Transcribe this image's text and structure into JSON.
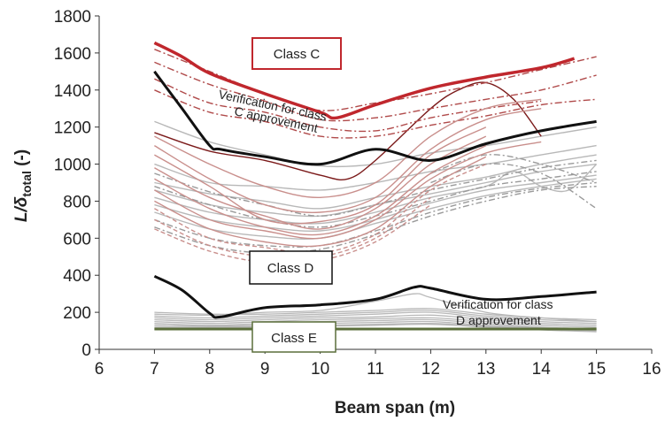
{
  "chart_data": {
    "type": "line",
    "xlabel": "Beam span (m)",
    "ylabel_main": "L/δ",
    "ylabel_sub": "total",
    "ylabel_unit": " (-)",
    "xlim": [
      6,
      16
    ],
    "ylim": [
      0,
      1800
    ],
    "xticks": [
      "6",
      "7",
      "8",
      "9",
      "10",
      "11",
      "12",
      "13",
      "14",
      "15",
      "16"
    ],
    "yticks": [
      "0",
      "200",
      "400",
      "600",
      "800",
      "1000",
      "1200",
      "1400",
      "1600",
      "1800"
    ],
    "grid": false,
    "colors": {
      "class_c": "#c0272d",
      "class_c_light": "#c98f8c",
      "class_c_mid": "#b04a4a",
      "class_c_dark": "#7b1a1a",
      "class_d": "#111111",
      "class_e": "#5a6e3a",
      "gray": "#b8b8b8",
      "gray_dark": "#9a9a9a"
    },
    "annotations": {
      "class_c": "Class C",
      "class_d": "Class D",
      "class_e": "Class E",
      "verif_c_line1": "Verification for class",
      "verif_c_line2": "C approvement",
      "verif_d_line1": "Verification for class",
      "verif_d_line2": "D approvement"
    },
    "limit_series": [
      {
        "role": "class_c",
        "x": [
          7,
          7.5,
          8,
          9,
          10,
          10.3,
          11,
          12,
          13,
          14,
          14.6
        ],
        "y": [
          1655,
          1580,
          1490,
          1380,
          1280,
          1250,
          1320,
          1410,
          1470,
          1520,
          1570
        ]
      },
      {
        "role": "class_d",
        "x": [
          7,
          7.5,
          8,
          8.2,
          9,
          10,
          11,
          12,
          13,
          14,
          15
        ],
        "y": [
          1500,
          1300,
          1100,
          1080,
          1040,
          1000,
          1080,
          1020,
          1110,
          1180,
          1230
        ]
      },
      {
        "role": "class_d",
        "x": [
          7,
          7.5,
          8,
          8.2,
          9,
          10,
          11,
          11.7,
          12,
          13,
          14,
          15
        ],
        "y": [
          395,
          320,
          195,
          175,
          225,
          240,
          270,
          335,
          330,
          270,
          285,
          310
        ]
      },
      {
        "role": "class_e",
        "x": [
          7,
          15
        ],
        "y": [
          110,
          110
        ]
      }
    ],
    "class_c_series": [
      {
        "style": "dark",
        "x": [
          7,
          8,
          9,
          10,
          10.5,
          11,
          12,
          12.5,
          13,
          13.5,
          14
        ],
        "y": [
          1170,
          1070,
          1020,
          940,
          920,
          1020,
          1300,
          1400,
          1440,
          1350,
          1150
        ]
      },
      {
        "style": "dash",
        "x": [
          7,
          8,
          9,
          10,
          11,
          12,
          13,
          14,
          15
        ],
        "y": [
          1620,
          1500,
          1380,
          1290,
          1330,
          1380,
          1440,
          1510,
          1580
        ]
      },
      {
        "style": "dash",
        "x": [
          7,
          8,
          9,
          10,
          11,
          12,
          13,
          14,
          15
        ],
        "y": [
          1550,
          1430,
          1340,
          1240,
          1250,
          1300,
          1350,
          1400,
          1480
        ]
      },
      {
        "style": "dash",
        "x": [
          7,
          8,
          9,
          10,
          11,
          12,
          13,
          14
        ],
        "y": [
          1460,
          1330,
          1280,
          1200,
          1180,
          1250,
          1300,
          1340
        ]
      },
      {
        "style": "dash",
        "x": [
          7,
          8,
          9,
          10,
          11,
          12,
          13,
          14,
          15
        ],
        "y": [
          1400,
          1280,
          1230,
          1150,
          1150,
          1210,
          1260,
          1320,
          1350
        ]
      },
      {
        "style": "light",
        "x": [
          7,
          8,
          9,
          10,
          11,
          12,
          13,
          14
        ],
        "y": [
          1150,
          1000,
          880,
          820,
          900,
          1150,
          1300,
          1350
        ]
      },
      {
        "style": "light",
        "x": [
          7,
          8,
          9,
          10,
          11,
          12,
          13,
          14
        ],
        "y": [
          1100,
          920,
          780,
          740,
          820,
          1080,
          1240,
          1300
        ]
      },
      {
        "style": "light",
        "x": [
          7,
          8,
          9,
          10,
          11,
          12,
          13
        ],
        "y": [
          1050,
          880,
          700,
          690,
          780,
          1050,
          1200
        ]
      },
      {
        "style": "light",
        "x": [
          7,
          8,
          9,
          10,
          11,
          12,
          13
        ],
        "y": [
          980,
          820,
          720,
          650,
          760,
          1000,
          1150
        ]
      },
      {
        "style": "light",
        "x": [
          7,
          8,
          9,
          10,
          11,
          12,
          13
        ],
        "y": [
          920,
          760,
          660,
          620,
          720,
          950,
          1100
        ]
      },
      {
        "style": "light",
        "x": [
          7,
          8,
          9,
          10,
          11,
          12,
          13,
          14
        ],
        "y": [
          860,
          700,
          640,
          600,
          700,
          920,
          1060,
          1120
        ]
      },
      {
        "style": "light",
        "x": [
          7,
          8,
          9,
          10,
          11,
          12,
          13
        ],
        "y": [
          800,
          650,
          580,
          560,
          650,
          880,
          1040
        ]
      },
      {
        "style": "lightdash",
        "x": [
          7,
          8,
          9,
          10,
          11,
          12,
          13
        ],
        "y": [
          760,
          600,
          550,
          520,
          620,
          860,
          1000
        ]
      },
      {
        "style": "lightdash",
        "x": [
          7,
          8,
          9,
          10,
          11,
          12
        ],
        "y": [
          700,
          560,
          500,
          500,
          600,
          820
        ]
      },
      {
        "style": "lightdash",
        "x": [
          7,
          8,
          9,
          10,
          11,
          12
        ],
        "y": [
          650,
          530,
          470,
          480,
          580,
          780
        ]
      }
    ],
    "gray_series": [
      {
        "style": "solid",
        "x": [
          7,
          8,
          9,
          10,
          11,
          12,
          13,
          14,
          15
        ],
        "y": [
          1230,
          1120,
          1050,
          990,
          1000,
          1060,
          1100,
          1150,
          1200
        ]
      },
      {
        "style": "solid",
        "x": [
          7,
          8,
          9,
          10,
          11,
          12,
          13,
          14,
          15
        ],
        "y": [
          1000,
          900,
          880,
          860,
          900,
          960,
          1000,
          1050,
          1100
        ]
      },
      {
        "style": "solid",
        "x": [
          7,
          8,
          9,
          10,
          11,
          12,
          13,
          14,
          15
        ],
        "y": [
          900,
          840,
          800,
          760,
          820,
          880,
          930,
          1000,
          1050
        ]
      },
      {
        "style": "solid",
        "x": [
          7,
          8,
          9,
          10,
          11,
          12,
          13,
          14,
          15
        ],
        "y": [
          860,
          780,
          740,
          720,
          780,
          840,
          900,
          960,
          1000
        ]
      },
      {
        "style": "solid",
        "x": [
          7,
          8,
          9,
          10,
          11,
          12,
          13,
          13.5,
          14,
          14.5,
          15
        ],
        "y": [
          820,
          740,
          700,
          680,
          740,
          820,
          880,
          960,
          880,
          860,
          1000
        ]
      },
      {
        "style": "solid",
        "x": [
          7,
          8,
          9,
          10,
          11,
          12,
          13,
          14,
          15
        ],
        "y": [
          780,
          700,
          660,
          640,
          700,
          790,
          860,
          900,
          940
        ]
      },
      {
        "style": "solid",
        "x": [
          7,
          8,
          9,
          10,
          11,
          12,
          13,
          14,
          15
        ],
        "y": [
          740,
          650,
          610,
          600,
          680,
          760,
          830,
          880,
          920
        ]
      },
      {
        "style": "dash",
        "x": [
          7,
          8,
          9,
          10,
          11,
          12,
          13,
          14,
          15
        ],
        "y": [
          950,
          850,
          780,
          720,
          780,
          860,
          920,
          980,
          1020
        ]
      },
      {
        "style": "dash",
        "x": [
          7,
          8,
          9,
          10,
          11,
          12,
          13,
          14,
          15
        ],
        "y": [
          880,
          780,
          700,
          660,
          720,
          800,
          880,
          920,
          960
        ]
      },
      {
        "style": "dash",
        "x": [
          7,
          8,
          9,
          10,
          11,
          12,
          13,
          14,
          15
        ],
        "y": [
          700,
          600,
          560,
          560,
          640,
          740,
          820,
          870,
          900
        ]
      },
      {
        "style": "dash",
        "x": [
          7,
          8,
          9,
          10,
          11,
          12,
          13,
          14,
          15
        ],
        "y": [
          660,
          560,
          520,
          540,
          620,
          720,
          800,
          860,
          880
        ]
      },
      {
        "style": "dash",
        "x": [
          12,
          13,
          14,
          15
        ],
        "y": [
          900,
          1000,
          950,
          760
        ]
      },
      {
        "style": "dash",
        "x": [
          12,
          13,
          14,
          15
        ],
        "y": [
          950,
          1050,
          1000,
          900
        ]
      }
    ],
    "gray_low_series": [
      {
        "x": [
          7,
          8,
          9,
          10,
          11,
          12,
          13,
          14,
          15
        ],
        "y": [
          200,
          190,
          190,
          200,
          210,
          220,
          190,
          170,
          160
        ]
      },
      {
        "x": [
          7,
          8,
          9,
          10,
          11,
          12,
          13,
          14,
          15
        ],
        "y": [
          180,
          170,
          180,
          190,
          200,
          210,
          180,
          160,
          150
        ]
      },
      {
        "x": [
          7,
          8,
          9,
          10,
          11,
          12,
          13,
          14,
          15
        ],
        "y": [
          170,
          160,
          170,
          180,
          190,
          200,
          170,
          150,
          140
        ]
      },
      {
        "x": [
          7,
          8,
          9,
          10,
          11,
          12,
          13,
          14,
          15
        ],
        "y": [
          160,
          150,
          160,
          170,
          175,
          185,
          160,
          140,
          130
        ]
      },
      {
        "x": [
          7,
          8,
          9,
          10,
          11,
          12,
          13,
          14,
          15
        ],
        "y": [
          150,
          140,
          150,
          160,
          165,
          170,
          150,
          130,
          120
        ]
      },
      {
        "x": [
          7,
          8,
          9,
          10,
          11,
          12,
          13,
          14,
          15
        ],
        "y": [
          140,
          130,
          140,
          150,
          155,
          160,
          140,
          120,
          110
        ]
      },
      {
        "x": [
          7,
          8,
          9,
          10,
          11,
          12,
          13,
          14,
          15
        ],
        "y": [
          130,
          125,
          130,
          140,
          145,
          150,
          130,
          115,
          105
        ]
      },
      {
        "x": [
          7,
          8,
          9,
          10,
          11,
          12,
          13,
          14,
          15
        ],
        "y": [
          120,
          120,
          125,
          130,
          135,
          140,
          125,
          110,
          100
        ]
      },
      {
        "x": [
          7,
          8,
          9,
          10,
          11,
          11.7,
          12,
          13,
          14,
          15
        ],
        "y": [
          190,
          185,
          200,
          210,
          260,
          300,
          280,
          200,
          170,
          150
        ]
      },
      {
        "x": [
          7,
          8,
          9,
          10,
          11,
          12,
          13,
          14,
          15
        ],
        "y": [
          110,
          115,
          120,
          125,
          130,
          135,
          120,
          105,
          95
        ]
      }
    ]
  }
}
